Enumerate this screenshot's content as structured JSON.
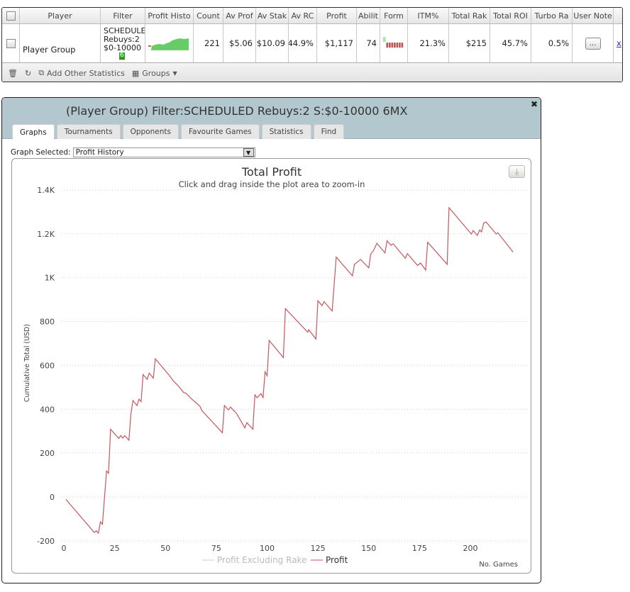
{
  "grid": {
    "columns": [
      "Player",
      "Filter",
      "Profit Histo",
      "Count",
      "Av Prof",
      "Av Stak",
      "Av RC",
      "Profit",
      "Abilit",
      "Form",
      "ITM%",
      "Total Rak",
      "Total ROI",
      "Turbo Ra",
      "User Note"
    ],
    "row": {
      "player": "Player Group",
      "filter_lines": [
        "SCHEDULE",
        "Rebuys:2",
        "$0-10000"
      ],
      "filter_badge": "6",
      "count": "221",
      "av_profit": "$5.06",
      "av_stake": "$10.09",
      "av_rc": "44.9%",
      "profit": "$1,117",
      "ability": "74",
      "itm": "21.3%",
      "total_rake": "$215",
      "total_roi": "45.7%",
      "turbo_ratio": "0.5%",
      "user_note_button": "...",
      "remove_link": "x"
    },
    "footer": {
      "add_stats": "Add Other Statistics",
      "groups": "Groups"
    }
  },
  "dialog": {
    "title": "(Player Group) Filter:SCHEDULED Rebuys:2 S:$0-10000 6MX",
    "tabs": [
      "Graphs",
      "Tournaments",
      "Opponents",
      "Favourite Games",
      "Statistics",
      "Find"
    ],
    "active_tab": "Graphs",
    "graph_selected_label": "Graph Selected:",
    "graph_selected_value": "Profit History"
  },
  "colors": {
    "profit": "#c8565e",
    "legend_inactive": "#c8c8c8",
    "titlebar": "#b3c8ce"
  },
  "chart_data": {
    "type": "line",
    "title": "Total Profit",
    "subtitle": "Click and drag inside the plot area to zoom-in",
    "xlabel": "No. Games",
    "ylabel": "Cumulative Total (USD)",
    "xlim": [
      0,
      225
    ],
    "ylim": [
      -200,
      1400
    ],
    "xticks": [
      0,
      25,
      50,
      75,
      100,
      125,
      150,
      175,
      200
    ],
    "yticks": [
      -200,
      0,
      200,
      400,
      600,
      800,
      1000,
      1200,
      1400
    ],
    "ytick_labels": [
      "-200",
      "0",
      "200",
      "400",
      "600",
      "800",
      "1K",
      "1.2K",
      "1.4K"
    ],
    "legend": [
      "Profit Excluding Rake",
      "Profit"
    ],
    "series": [
      {
        "name": "Profit",
        "x": [
          1,
          15,
          16,
          17,
          18,
          19,
          21,
          22,
          23,
          27,
          28,
          29,
          30,
          32,
          33,
          34,
          36,
          37,
          38,
          39,
          41,
          42,
          44,
          45,
          52,
          54,
          56,
          59,
          60,
          63,
          67,
          68,
          78,
          79,
          81,
          82,
          85,
          89,
          90,
          93,
          94,
          95,
          97,
          98,
          99,
          100,
          101,
          108,
          109,
          120,
          120.5,
          124,
          125,
          127,
          128,
          132,
          134,
          142,
          143,
          146,
          150,
          151,
          152.5,
          154,
          158,
          159,
          161,
          162,
          168,
          169,
          174,
          175.5,
          178,
          179,
          188.6,
          189.5,
          200.5,
          201.4,
          203.4,
          204.6,
          205.5,
          206.6,
          207.7,
          212.7,
          213.5,
          221
        ],
        "values": [
          -11,
          -162,
          -154,
          -165,
          -113,
          -124,
          119,
          108,
          309,
          267,
          280,
          269,
          280,
          259,
          377,
          440,
          417,
          446,
          435,
          558,
          536,
          565,
          542,
          630,
          553,
          528,
          510,
          476,
          474,
          446,
          413,
          393,
          293,
          417,
          397,
          410,
          381,
          315,
          339,
          309,
          466,
          453,
          471,
          453,
          571,
          553,
          714,
          636,
          859,
          751,
          763,
          720,
          895,
          873,
          891,
          848,
          1094,
          1008,
          1061,
          1083,
          1045,
          1108,
          1126,
          1157,
          1113,
          1168,
          1148,
          1155,
          1089,
          1110,
          1056,
          1067,
          1035,
          1162,
          1061,
          1319,
          1199,
          1215,
          1193,
          1218,
          1209,
          1250,
          1254,
          1199,
          1205,
          1117
        ]
      }
    ]
  }
}
